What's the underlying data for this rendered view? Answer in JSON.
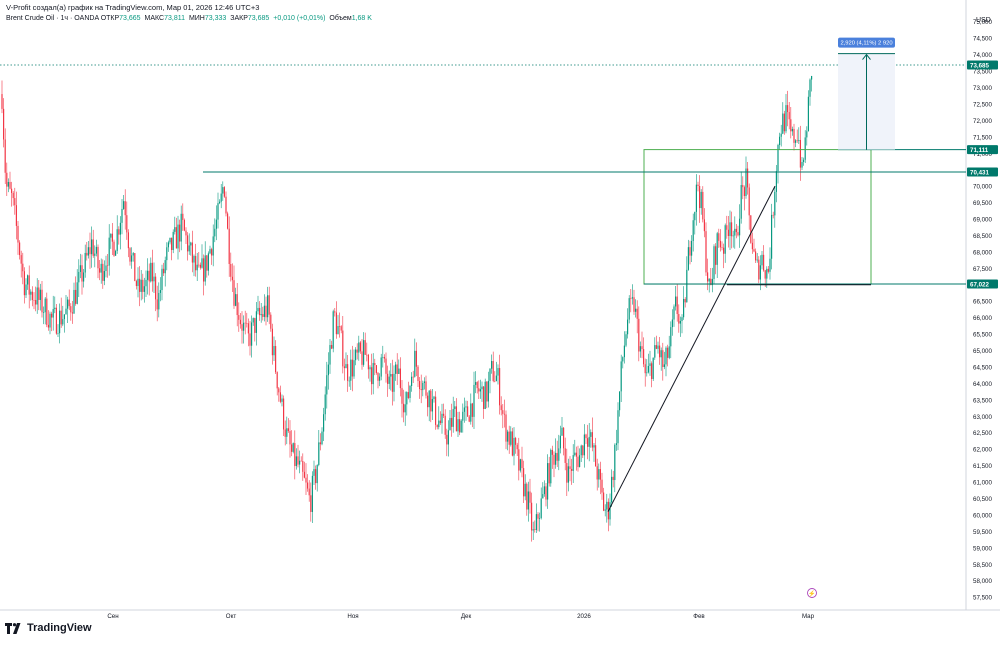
{
  "header": {
    "caption": "V-Profit создал(а) график на TradingView.com, Мар 01, 2026 12:46 UTC+3",
    "symbol": "Brent Crude Oil · 1ч · OANDA",
    "open_label": "ОТКР",
    "open_value": "73,665",
    "high_label": "МАКС",
    "high_value": "73,811",
    "low_label": "МИН",
    "low_value": "73,333",
    "close_label": "ЗАКР",
    "close_value": "73,685",
    "change": "+0,010 (+0,01%)",
    "volume_label": "Объем",
    "volume_value": "1,68 K"
  },
  "brand": {
    "name": "TradingView",
    "icon": "tradingview-logo-icon"
  },
  "colors": {
    "up": "#089981",
    "down": "#f23645",
    "hline": "#00796b",
    "rect": "#4caf50",
    "measure": "#2962ff",
    "axis_text": "#131722"
  },
  "chart_data": {
    "type": "candlestick",
    "title": "Brent Crude Oil · 1ч · OANDA",
    "currency": "USD",
    "x_range": [
      0,
      800
    ],
    "ylim": [
      57.2,
      75.6
    ],
    "y_ticks": [
      "57,500",
      "58,000",
      "58,500",
      "59,000",
      "59,500",
      "60,000",
      "60,500",
      "61,000",
      "61,500",
      "62,000",
      "62,500",
      "63,000",
      "63,500",
      "64,000",
      "64,500",
      "65,000",
      "65,500",
      "66,000",
      "66,500",
      "67,000",
      "67,500",
      "68,000",
      "68,500",
      "69,000",
      "69,500",
      "70,000",
      "70,500",
      "71,000",
      "71,500",
      "72,000",
      "72,500",
      "73,000",
      "73,500",
      "74,000",
      "74,500",
      "75,000"
    ],
    "y_tick_values": [
      57.5,
      58,
      58.5,
      59,
      59.5,
      60,
      60.5,
      61,
      61.5,
      62,
      62.5,
      63,
      63.5,
      64,
      64.5,
      65,
      65.5,
      66,
      66.5,
      67,
      67.5,
      68,
      68.5,
      69,
      69.5,
      70,
      70.5,
      71,
      71.5,
      72,
      72.5,
      73,
      73.5,
      74,
      74.5,
      75
    ],
    "x_ticks": [
      {
        "label": "Сен",
        "x": 113
      },
      {
        "label": "Окт",
        "x": 231
      },
      {
        "label": "Ноя",
        "x": 353
      },
      {
        "label": "Дек",
        "x": 466
      },
      {
        "label": "2026",
        "x": 584
      },
      {
        "label": "Фев",
        "x": 699
      },
      {
        "label": "Мар",
        "x": 808
      }
    ],
    "price_path": [
      [
        2,
        72.8
      ],
      [
        6,
        70.0
      ],
      [
        12,
        69.6
      ],
      [
        18,
        68.4
      ],
      [
        24,
        67.1
      ],
      [
        30,
        66.8
      ],
      [
        37,
        66.6
      ],
      [
        44,
        66.3
      ],
      [
        52,
        65.9
      ],
      [
        60,
        66.0
      ],
      [
        68,
        66.2
      ],
      [
        76,
        66.8
      ],
      [
        84,
        67.5
      ],
      [
        92,
        68.3
      ],
      [
        100,
        67.3
      ],
      [
        108,
        68.0
      ],
      [
        116,
        68.4
      ],
      [
        124,
        69.7
      ],
      [
        130,
        68.0
      ],
      [
        138,
        66.8
      ],
      [
        146,
        67.0
      ],
      [
        152,
        67.3
      ],
      [
        158,
        66.5
      ],
      [
        166,
        67.8
      ],
      [
        174,
        68.3
      ],
      [
        182,
        68.8
      ],
      [
        190,
        68.0
      ],
      [
        198,
        67.2
      ],
      [
        206,
        67.6
      ],
      [
        214,
        68.6
      ],
      [
        220,
        69.3
      ],
      [
        224,
        70.2
      ],
      [
        228,
        68.4
      ],
      [
        234,
        66.8
      ],
      [
        240,
        66.0
      ],
      [
        248,
        65.3
      ],
      [
        256,
        65.9
      ],
      [
        262,
        66.1
      ],
      [
        268,
        66.3
      ],
      [
        274,
        64.8
      ],
      [
        280,
        63.6
      ],
      [
        286,
        62.5
      ],
      [
        292,
        61.8
      ],
      [
        298,
        61.5
      ],
      [
        304,
        61.0
      ],
      [
        310,
        60.4
      ],
      [
        316,
        61.3
      ],
      [
        322,
        62.7
      ],
      [
        328,
        64.5
      ],
      [
        334,
        66.1
      ],
      [
        340,
        65.4
      ],
      [
        346,
        64.4
      ],
      [
        352,
        64.5
      ],
      [
        358,
        64.8
      ],
      [
        366,
        64.9
      ],
      [
        374,
        64.2
      ],
      [
        382,
        64.7
      ],
      [
        390,
        63.8
      ],
      [
        398,
        64.4
      ],
      [
        406,
        63.2
      ],
      [
        414,
        64.8
      ],
      [
        422,
        64.0
      ],
      [
        430,
        63.6
      ],
      [
        436,
        63.0
      ],
      [
        442,
        62.7
      ],
      [
        448,
        62.4
      ],
      [
        454,
        63.1
      ],
      [
        460,
        62.8
      ],
      [
        466,
        63.0
      ],
      [
        472,
        63.4
      ],
      [
        478,
        63.8
      ],
      [
        486,
        63.6
      ],
      [
        492,
        64.4
      ],
      [
        498,
        64.1
      ],
      [
        504,
        62.8
      ],
      [
        510,
        62.3
      ],
      [
        516,
        61.8
      ],
      [
        522,
        61.1
      ],
      [
        528,
        60.4
      ],
      [
        534,
        59.2
      ],
      [
        538,
        60.0
      ],
      [
        544,
        60.6
      ],
      [
        550,
        61.5
      ],
      [
        556,
        62.0
      ],
      [
        562,
        62.3
      ],
      [
        568,
        61.2
      ],
      [
        574,
        61.7
      ],
      [
        580,
        61.8
      ],
      [
        586,
        62.6
      ],
      [
        592,
        62.1
      ],
      [
        598,
        61.2
      ],
      [
        604,
        60.2
      ],
      [
        608,
        60.1
      ],
      [
        614,
        61.6
      ],
      [
        618,
        63.1
      ],
      [
        622,
        64.6
      ],
      [
        628,
        66.1
      ],
      [
        634,
        66.4
      ],
      [
        640,
        65.1
      ],
      [
        646,
        64.1
      ],
      [
        652,
        64.6
      ],
      [
        658,
        65.1
      ],
      [
        664,
        64.4
      ],
      [
        670,
        65.2
      ],
      [
        676,
        66.4
      ],
      [
        682,
        65.6
      ],
      [
        688,
        67.7
      ],
      [
        692,
        68.9
      ],
      [
        698,
        70.1
      ],
      [
        702,
        69.2
      ],
      [
        706,
        67.8
      ],
      [
        710,
        66.6
      ],
      [
        714,
        67.8
      ],
      [
        718,
        68.4
      ],
      [
        724,
        68.2
      ],
      [
        730,
        69.1
      ],
      [
        736,
        68.1
      ],
      [
        740,
        69.6
      ],
      [
        746,
        70.1
      ],
      [
        750,
        68.7
      ],
      [
        756,
        67.4
      ],
      [
        762,
        67.8
      ],
      [
        768,
        67.3
      ],
      [
        772,
        68.9
      ],
      [
        776,
        70.6
      ],
      [
        780,
        71.8
      ],
      [
        786,
        72.1
      ],
      [
        792,
        71.4
      ],
      [
        798,
        71.7
      ],
      [
        802,
        70.3
      ],
      [
        806,
        71.6
      ],
      [
        810,
        73.0
      ],
      [
        812,
        73.685
      ]
    ],
    "price_lines": [
      {
        "label": "73,685",
        "value": 73.685,
        "x_start": 0,
        "style": "dotted"
      },
      {
        "label": "71,111",
        "value": 71.111,
        "x_start": 838,
        "style": "solid"
      },
      {
        "label": "70,431",
        "value": 70.431,
        "x_start": 203,
        "style": "solid"
      },
      {
        "label": "67,022",
        "value": 67.022,
        "x_start": 644,
        "style": "solid"
      }
    ],
    "rectangle": {
      "x_start": 644,
      "x_end": 871,
      "y_top": 71.111,
      "y_bottom": 67.022
    },
    "trendlines": [
      {
        "x1": 608,
        "y1": 60.1,
        "x2": 775,
        "y2": 70.0
      },
      {
        "x1": 727,
        "y1": 67.0,
        "x2": 871,
        "y2": 67.0
      }
    ],
    "measurement": {
      "label": "2,920 (4,11%) 2 920",
      "x_start": 838,
      "x_end": 895,
      "from": 71.111,
      "to": 74.031
    },
    "event_marker": {
      "x": 812,
      "glyph": "⚡",
      "icon": "lightning-icon"
    }
  }
}
